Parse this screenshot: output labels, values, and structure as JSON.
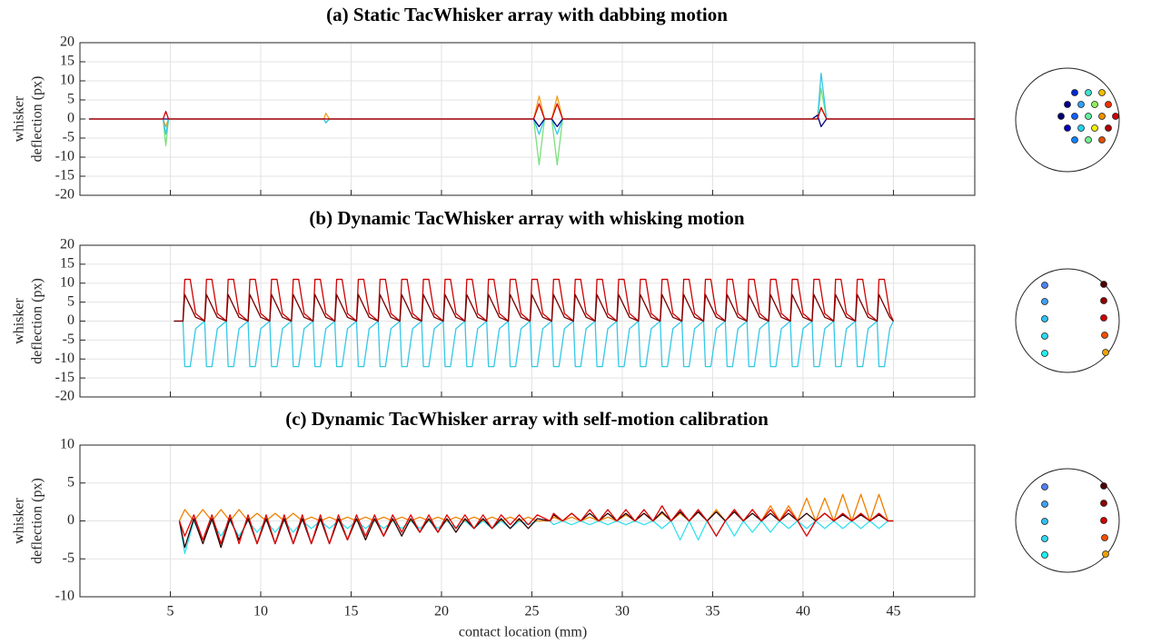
{
  "chart_data": [
    {
      "type": "line",
      "title": "(a) Static TacWhisker array with dabbing motion",
      "ylabel": [
        "whisker",
        "deflection (px)"
      ],
      "xlim": [
        0,
        49.5
      ],
      "xticks": [
        5,
        10,
        15,
        20,
        25,
        30,
        35,
        40,
        45
      ],
      "xticklabels": false,
      "ylim": [
        -20,
        20
      ],
      "yticks": [
        -20,
        -15,
        -10,
        -5,
        0,
        5,
        10,
        15,
        20
      ],
      "grid": true,
      "x": [
        0.5,
        4.6,
        4.75,
        4.9,
        5.1,
        13.5,
        13.6,
        13.8,
        25.1,
        25.4,
        25.7,
        26.1,
        26.4,
        26.7,
        40.5,
        40.8,
        41.0,
        41.3,
        41.7,
        49.5
      ],
      "series": [
        {
          "color": "#7be07b",
          "values": [
            0,
            0,
            -7,
            0,
            0,
            0,
            -1,
            0,
            0,
            -12,
            0,
            0,
            -12,
            0,
            0,
            0,
            8,
            0,
            0,
            0
          ]
        },
        {
          "color": "#f0a020",
          "values": [
            0,
            0,
            -2,
            0,
            0,
            0,
            1.5,
            0,
            0,
            6,
            0,
            0,
            6,
            0,
            0,
            0,
            3,
            0,
            0,
            0
          ]
        },
        {
          "color": "#33c8e8",
          "values": [
            0,
            0,
            -4,
            0,
            0,
            0,
            -1,
            0,
            0,
            -4,
            0,
            0,
            -4,
            0,
            0,
            0,
            12,
            0,
            0,
            0
          ]
        },
        {
          "color": "#000080",
          "values": [
            0,
            0,
            0,
            0,
            0,
            0,
            0,
            0,
            0,
            -2,
            0,
            0,
            -2,
            0,
            0,
            1,
            -2,
            0,
            0,
            0
          ]
        },
        {
          "color": "#d00000",
          "values": [
            0,
            0,
            2,
            0,
            0,
            0,
            0,
            0,
            0,
            4,
            0,
            0,
            4,
            0,
            0,
            0,
            3,
            0,
            0,
            0
          ]
        }
      ]
    },
    {
      "type": "line",
      "title": "(b) Dynamic TacWhisker array with whisking motion",
      "ylabel": [
        "whisker",
        "deflection (px)"
      ],
      "xlim": [
        0,
        49.5
      ],
      "xticks": [
        5,
        10,
        15,
        20,
        25,
        30,
        35,
        40,
        45
      ],
      "xticklabels": false,
      "ylim": [
        -20,
        20
      ],
      "yticks": [
        -20,
        -15,
        -10,
        -5,
        0,
        5,
        10,
        15,
        20
      ],
      "grid": true,
      "x": [
        5.2,
        5.7,
        5.8,
        6.1,
        6.4,
        6.9,
        7.0,
        7.3,
        7.6,
        8.1,
        8.2,
        8.5,
        8.8,
        9.3,
        9.4,
        9.7,
        10.0,
        10.5,
        10.6,
        10.9,
        11.2,
        11.7,
        11.8,
        12.1,
        12.4,
        12.9,
        13.0,
        13.3,
        13.6,
        14.1,
        14.2,
        14.5,
        14.8,
        15.3,
        15.4,
        15.7,
        16.0,
        16.5,
        16.6,
        16.9,
        17.2,
        17.7,
        17.8,
        18.1,
        18.4,
        18.9,
        19.0,
        19.3,
        19.6,
        20.1,
        20.2,
        20.5,
        20.8,
        21.3,
        21.4,
        21.7,
        22.0,
        22.5,
        22.6,
        22.9,
        23.2,
        23.7,
        23.8,
        24.1,
        24.4,
        24.9,
        25.0,
        25.3,
        25.6,
        26.1,
        26.2,
        26.5,
        26.8,
        27.3,
        27.4,
        27.7,
        28.0,
        28.5,
        28.6,
        28.9,
        29.2,
        29.7,
        29.8,
        30.1,
        30.4,
        30.9,
        31.0,
        31.3,
        31.6,
        32.1,
        32.2,
        32.5,
        32.8,
        33.3,
        33.4,
        33.7,
        34.0,
        34.5,
        34.6,
        34.9,
        35.2,
        35.7,
        35.8,
        36.1,
        36.4,
        36.9,
        37.0,
        37.3,
        37.6,
        38.1,
        38.2,
        38.5,
        38.8,
        39.3,
        39.4,
        39.7,
        40.0,
        40.5,
        40.6,
        40.9,
        41.2,
        41.7,
        41.8,
        42.1,
        42.4,
        42.9,
        43.0,
        43.3,
        43.6,
        44.1,
        44.2,
        44.5,
        44.8,
        45.0
      ],
      "series": [
        {
          "color": "#33c8e8",
          "values": [
            0,
            0,
            -12,
            -12,
            -2,
            0,
            -12,
            -12,
            -2,
            0,
            -12,
            -12,
            -2,
            0,
            -12,
            -12,
            -2,
            0,
            -12,
            -12,
            -2,
            0,
            -12,
            -12,
            -2,
            0,
            -12,
            -12,
            -2,
            0,
            -12,
            -12,
            -2,
            0,
            -12,
            -12,
            -2,
            0,
            -12,
            -12,
            -2,
            0,
            -12,
            -12,
            -2,
            0,
            -12,
            -12,
            -2,
            0,
            -12,
            -12,
            -2,
            0,
            -12,
            -12,
            -2,
            0,
            -12,
            -12,
            -2,
            0,
            -12,
            -12,
            -2,
            0,
            -12,
            -12,
            -2,
            0,
            -12,
            -12,
            -2,
            0,
            -12,
            -12,
            -2,
            0,
            -12,
            -12,
            -2,
            0,
            -12,
            -12,
            -2,
            0,
            -12,
            -12,
            -2,
            0,
            -12,
            -12,
            -2,
            0,
            -12,
            -12,
            -2,
            0,
            -12,
            -12,
            -2,
            0,
            -12,
            -12,
            -2,
            0,
            -12,
            -12,
            -2,
            0,
            -12,
            -12,
            -2,
            0,
            -12,
            -12,
            -2,
            0,
            -12,
            -12,
            -2,
            0,
            -12,
            -12,
            -2,
            0,
            -12,
            -12,
            -2,
            0,
            -12,
            -12,
            -2,
            0
          ]
        },
        {
          "color": "#d00000",
          "values": [
            0,
            0,
            11,
            11,
            2,
            0,
            11,
            11,
            2,
            0,
            11,
            11,
            2,
            0,
            11,
            11,
            2,
            0,
            11,
            11,
            2,
            0,
            11,
            11,
            2,
            0,
            11,
            11,
            2,
            0,
            11,
            11,
            2,
            0,
            11,
            11,
            2,
            0,
            11,
            11,
            2,
            0,
            11,
            11,
            2,
            0,
            11,
            11,
            2,
            0,
            11,
            11,
            2,
            0,
            11,
            11,
            2,
            0,
            11,
            11,
            2,
            0,
            11,
            11,
            2,
            0,
            11,
            11,
            2,
            0,
            11,
            11,
            2,
            0,
            11,
            11,
            2,
            0,
            11,
            11,
            2,
            0,
            11,
            11,
            2,
            0,
            11,
            11,
            2,
            0,
            11,
            11,
            2,
            0,
            11,
            11,
            2,
            0,
            11,
            11,
            2,
            0,
            11,
            11,
            2,
            0,
            11,
            11,
            2,
            0,
            11,
            11,
            2,
            0,
            11,
            11,
            2,
            0,
            11,
            11,
            2,
            0,
            11,
            11,
            2,
            0,
            11,
            11,
            2,
            0,
            11,
            11,
            2,
            0
          ]
        },
        {
          "color": "#7a0000",
          "values": [
            0,
            0,
            7,
            4,
            1,
            0,
            7,
            4,
            1,
            0,
            7,
            4,
            1,
            0,
            7,
            4,
            1,
            0,
            7,
            4,
            1,
            0,
            7,
            4,
            1,
            0,
            7,
            4,
            1,
            0,
            7,
            4,
            1,
            0,
            7,
            4,
            1,
            0,
            7,
            4,
            1,
            0,
            7,
            4,
            1,
            0,
            7,
            4,
            1,
            0,
            7,
            4,
            1,
            0,
            7,
            4,
            1,
            0,
            7,
            4,
            1,
            0,
            7,
            4,
            1,
            0,
            7,
            4,
            1,
            0,
            7,
            4,
            1,
            0,
            7,
            4,
            1,
            0,
            7,
            4,
            1,
            0,
            7,
            4,
            1,
            0,
            7,
            4,
            1,
            0,
            7,
            4,
            1,
            0,
            7,
            4,
            1,
            0,
            7,
            4,
            1,
            0,
            7,
            4,
            1,
            0,
            7,
            4,
            1,
            0,
            7,
            4,
            1,
            0,
            7,
            4,
            1,
            0,
            7,
            4,
            1,
            0,
            7,
            4,
            1,
            0,
            7,
            4,
            1,
            0,
            7,
            4,
            1,
            0
          ]
        }
      ]
    },
    {
      "type": "line",
      "title": "(c) Dynamic TacWhisker array with self-motion calibration",
      "ylabel": [
        "whisker",
        "deflection (px)"
      ],
      "xlabel": "contact location (mm)",
      "xlim": [
        0,
        49.5
      ],
      "xticks": [
        5,
        10,
        15,
        20,
        25,
        30,
        35,
        40,
        45
      ],
      "xticklabels": true,
      "ylim": [
        -10,
        10
      ],
      "yticks": [
        -10,
        -5,
        0,
        5,
        10
      ],
      "grid": true,
      "x": [
        5.5,
        5.8,
        6.3,
        6.8,
        7.3,
        7.8,
        8.3,
        8.8,
        9.3,
        9.8,
        10.3,
        10.8,
        11.3,
        11.8,
        12.3,
        12.8,
        13.3,
        13.8,
        14.3,
        14.8,
        15.3,
        15.8,
        16.3,
        16.8,
        17.3,
        17.8,
        18.3,
        18.8,
        19.3,
        19.8,
        20.3,
        20.8,
        21.3,
        21.8,
        22.3,
        22.8,
        23.3,
        23.8,
        24.3,
        24.8,
        25.3,
        26.0,
        26.2,
        26.7,
        27.2,
        27.7,
        28.2,
        28.7,
        29.2,
        29.7,
        30.2,
        30.7,
        31.2,
        31.7,
        32.2,
        32.7,
        33.2,
        33.7,
        34.2,
        34.7,
        35.2,
        35.7,
        36.2,
        36.7,
        37.2,
        37.7,
        38.2,
        38.7,
        39.2,
        39.7,
        40.2,
        40.7,
        41.2,
        41.7,
        42.2,
        42.7,
        43.2,
        43.7,
        44.2,
        44.7,
        45.0
      ],
      "series": [
        {
          "color": "#33e0f0",
          "values": [
            0,
            -4.3,
            0,
            -2.5,
            0,
            -2,
            0,
            -2,
            0,
            -1.5,
            0,
            -1.5,
            0,
            -1.5,
            0,
            -1,
            0,
            -1,
            0,
            -1,
            0,
            -1,
            0,
            -1,
            0,
            -1,
            0,
            -1,
            0,
            -1,
            0,
            -1,
            0,
            -1,
            0,
            -1,
            0,
            -1,
            0,
            -0.5,
            0,
            0,
            -0.5,
            0,
            -0.5,
            0,
            -0.5,
            0,
            -0.5,
            0,
            -0.5,
            0,
            -0.5,
            0,
            -1,
            0,
            -2.5,
            0,
            -2.5,
            0,
            -2,
            0,
            -2,
            0,
            -1.5,
            0,
            -1.5,
            0,
            -1,
            0,
            -1,
            0,
            -1,
            0,
            -1,
            0,
            -1,
            0,
            -1,
            0,
            0
          ]
        },
        {
          "color": "#f08000",
          "values": [
            0,
            1.5,
            0,
            1.5,
            0,
            1.5,
            0,
            1.5,
            0,
            1,
            0,
            1,
            0,
            1,
            0,
            0.5,
            0,
            0.5,
            0,
            0.5,
            0,
            0.5,
            0,
            0.5,
            0,
            0.5,
            0,
            0.5,
            0,
            0.5,
            0,
            0.5,
            0,
            0.5,
            0,
            0.5,
            0,
            0.5,
            0,
            0.5,
            0,
            0,
            0.5,
            0,
            0.5,
            0,
            0.5,
            0,
            0.5,
            0,
            0.8,
            0,
            1,
            0,
            1,
            0,
            1,
            0,
            1.2,
            0,
            1.5,
            0,
            1.5,
            0,
            1.5,
            0,
            2,
            0,
            2,
            0,
            3,
            0,
            3,
            0,
            3.5,
            0,
            3.5,
            0,
            3.5,
            0,
            0
          ]
        },
        {
          "color": "#2a0000",
          "values": [
            0,
            -3.5,
            0.3,
            -3,
            0.3,
            -3.5,
            0.3,
            -2.5,
            0.3,
            -3,
            0.3,
            -3,
            0.3,
            -3,
            0.3,
            -3,
            0.3,
            -3,
            0.3,
            -2.5,
            0.3,
            -2.5,
            0.3,
            -2,
            0.3,
            -2,
            0.3,
            -1.5,
            0.3,
            -1.5,
            0.3,
            -1.5,
            0.3,
            -1,
            0.3,
            -1,
            0.3,
            -1,
            0.3,
            -1,
            0.3,
            0,
            0.8,
            0,
            1,
            0,
            1,
            0,
            1,
            0,
            1,
            0,
            1,
            0,
            1.2,
            0,
            1.2,
            0,
            1.2,
            0,
            1.2,
            0,
            1.2,
            0,
            1,
            0,
            1,
            0,
            1,
            0,
            1,
            0,
            1,
            0,
            0.8,
            0,
            0.8,
            0,
            0.8,
            0,
            0
          ]
        },
        {
          "color": "#e00000",
          "values": [
            0,
            -2,
            0.8,
            -2.5,
            0.8,
            -3,
            0.8,
            -3,
            0.8,
            -3,
            0.8,
            -3,
            0.8,
            -3,
            0.8,
            -3,
            0.8,
            -3,
            0.8,
            -2.5,
            0.8,
            -2,
            0.8,
            -2,
            0.8,
            -1.5,
            0.8,
            -1.5,
            0.8,
            -1.5,
            0.8,
            -1,
            0.8,
            -1,
            0.8,
            -1,
            0.8,
            -0.5,
            0.8,
            -0.5,
            0.8,
            0,
            1,
            0,
            1,
            0,
            1.5,
            0,
            1.5,
            0,
            1.5,
            0,
            1.5,
            0,
            2,
            0,
            1.5,
            0,
            1.5,
            0,
            -2,
            0,
            1.5,
            0,
            1.5,
            0,
            1.5,
            0,
            1.5,
            0,
            -2,
            0,
            1,
            0,
            1,
            0,
            1,
            0,
            1,
            0,
            0
          ]
        }
      ]
    }
  ]
}
